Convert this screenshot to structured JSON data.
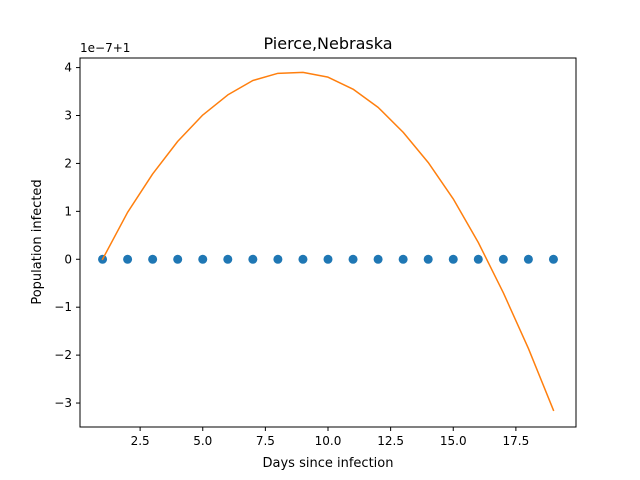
{
  "chart_data": {
    "type": "scatter",
    "title": "Pierce,Nebraska",
    "xlabel": "Days since infection",
    "ylabel": "Population infected",
    "offset_label": "1e−7+1",
    "xlim": [
      0.1,
      19.9
    ],
    "ylim": [
      -3.5,
      4.2
    ],
    "x_ticks": [
      2.5,
      5.0,
      7.5,
      10.0,
      12.5,
      15.0,
      17.5
    ],
    "x_tick_labels": [
      "2.5",
      "5.0",
      "7.5",
      "10.0",
      "12.5",
      "15.0",
      "17.5"
    ],
    "y_ticks": [
      -3,
      -2,
      -1,
      0,
      1,
      2,
      3,
      4
    ],
    "y_tick_labels": [
      "−3",
      "−2",
      "−1",
      "0",
      "1",
      "2",
      "3",
      "4"
    ],
    "grid": false,
    "series": [
      {
        "kind": "scatter",
        "color": "#1f77b4",
        "x": [
          1,
          2,
          3,
          4,
          5,
          6,
          7,
          8,
          9,
          10,
          11,
          12,
          13,
          14,
          15,
          16,
          17,
          18,
          19
        ],
        "y": [
          0,
          0,
          0,
          0,
          0,
          0,
          0,
          0,
          0,
          0,
          0,
          0,
          0,
          0,
          0,
          0,
          0,
          0,
          0
        ]
      },
      {
        "kind": "line",
        "color": "#ff7f0e",
        "x": [
          1,
          2,
          3,
          4,
          5,
          6,
          7,
          8,
          9,
          10,
          11,
          12,
          13,
          14,
          15,
          16,
          17,
          18,
          19
        ],
        "y": [
          0.0,
          0.98,
          1.78,
          2.46,
          3.01,
          3.43,
          3.73,
          3.88,
          3.9,
          3.8,
          3.55,
          3.17,
          2.65,
          2.02,
          1.26,
          0.35,
          -0.7,
          -1.86,
          -3.15
        ]
      }
    ]
  }
}
